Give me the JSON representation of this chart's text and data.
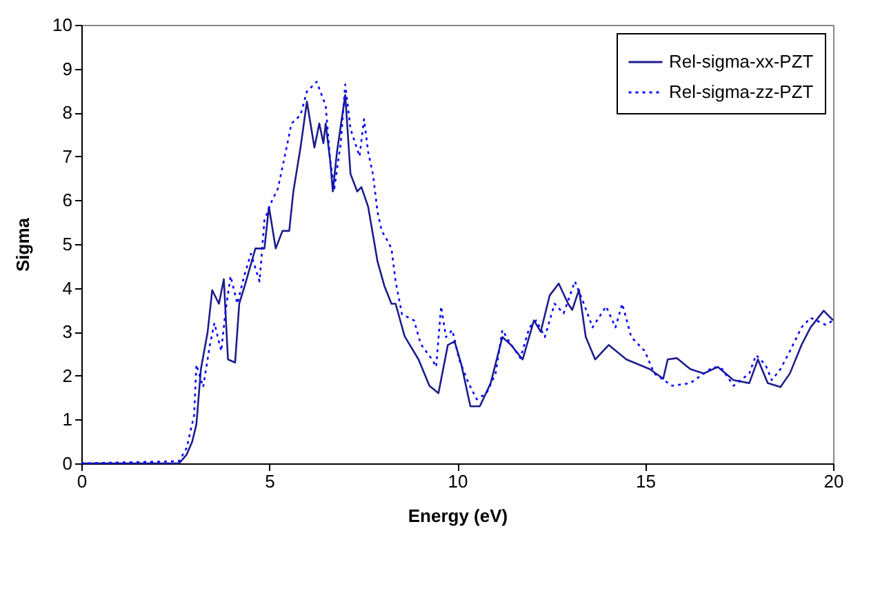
{
  "chart_data": {
    "type": "line",
    "xlabel": "Energy (eV)",
    "ylabel": "Sigma",
    "xlim": [
      0,
      20
    ],
    "ylim": [
      0,
      10
    ],
    "xticks": [
      0,
      5,
      10,
      15,
      20
    ],
    "yticks": [
      0,
      1,
      2,
      3,
      4,
      5,
      6,
      7,
      8,
      9,
      10
    ],
    "grid": false,
    "legend": "top right",
    "marker": "none",
    "series": [
      {
        "name": "Rel-sigma-xx-PZT",
        "color": "#1c1c8c",
        "line_style": "solid",
        "x": [
          0,
          2.6,
          2.8,
          2.95,
          3.06,
          3.18,
          3.36,
          3.48,
          3.66,
          3.79,
          3.9,
          4.09,
          4.2,
          4.38,
          4.63,
          4.87,
          4.99,
          5.17,
          5.35,
          5.53,
          5.64,
          5.83,
          6.0,
          6.2,
          6.33,
          6.44,
          6.5,
          6.62,
          6.69,
          6.8,
          7.02,
          7.16,
          7.34,
          7.45,
          7.63,
          7.76,
          7.88,
          8.06,
          8.25,
          8.36,
          8.6,
          8.97,
          9.26,
          9.5,
          9.75,
          9.93,
          10.11,
          10.35,
          10.6,
          10.89,
          11.2,
          11.43,
          11.74,
          12.04,
          12.22,
          12.46,
          12.7,
          12.95,
          13.06,
          13.24,
          13.42,
          13.67,
          14.03,
          14.5,
          15.12,
          15.48,
          15.6,
          15.84,
          16.2,
          16.56,
          16.93,
          17.35,
          17.77,
          18.0,
          18.26,
          18.6,
          18.85,
          19.16,
          19.4,
          19.75,
          20
        ],
        "values": [
          0,
          0,
          0.2,
          0.5,
          0.89,
          2.15,
          3.0,
          3.95,
          3.64,
          4.2,
          2.37,
          2.3,
          3.64,
          4.15,
          4.9,
          4.9,
          5.85,
          4.9,
          5.3,
          5.3,
          6.2,
          7.2,
          8.25,
          7.2,
          7.75,
          7.3,
          7.75,
          6.9,
          6.2,
          7.1,
          8.4,
          6.6,
          6.2,
          6.3,
          5.85,
          5.2,
          4.6,
          4.05,
          3.64,
          3.64,
          2.9,
          2.37,
          1.77,
          1.6,
          2.7,
          2.78,
          2.25,
          1.3,
          1.3,
          1.83,
          2.88,
          2.7,
          2.37,
          3.26,
          3.0,
          3.83,
          4.1,
          3.64,
          3.5,
          3.96,
          2.88,
          2.37,
          2.7,
          2.37,
          2.15,
          1.93,
          2.37,
          2.4,
          2.15,
          2.05,
          2.2,
          1.9,
          1.83,
          2.37,
          1.83,
          1.74,
          2.05,
          2.7,
          3.1,
          3.48,
          3.26
        ]
      },
      {
        "name": "Rel-sigma-zz-PZT",
        "color": "#0000ff",
        "line_style": "dotted",
        "x": [
          0,
          2.6,
          2.8,
          3.0,
          3.06,
          3.24,
          3.42,
          3.54,
          3.72,
          3.84,
          3.97,
          4.15,
          4.33,
          4.51,
          4.74,
          4.87,
          5.05,
          5.23,
          5.41,
          5.59,
          5.83,
          6.0,
          6.26,
          6.5,
          6.62,
          6.73,
          6.9,
          7.02,
          7.16,
          7.4,
          7.52,
          7.63,
          7.76,
          7.88,
          7.99,
          8.13,
          8.25,
          8.36,
          8.53,
          8.85,
          9.03,
          9.33,
          9.44,
          9.57,
          9.7,
          9.87,
          10.05,
          10.3,
          10.52,
          10.78,
          11.02,
          11.2,
          11.38,
          11.68,
          11.92,
          12.1,
          12.33,
          12.59,
          12.83,
          13.13,
          13.37,
          13.6,
          13.96,
          14.21,
          14.39,
          14.63,
          14.99,
          15.24,
          15.72,
          16.2,
          16.81,
          17.05,
          17.35,
          17.77,
          17.95,
          18.2,
          18.37,
          18.6,
          18.85,
          19.16,
          19.4,
          19.8,
          20
        ],
        "values": [
          0,
          0.05,
          0.35,
          1.1,
          2.25,
          1.74,
          2.7,
          3.2,
          2.56,
          3.5,
          4.27,
          3.64,
          4.27,
          4.78,
          4.15,
          5.54,
          5.95,
          6.27,
          7.0,
          7.75,
          7.94,
          8.48,
          8.7,
          8.16,
          6.9,
          6.27,
          7.3,
          8.64,
          7.63,
          7.0,
          7.85,
          7.1,
          6.58,
          5.73,
          5.3,
          5.1,
          4.9,
          4.15,
          3.4,
          3.26,
          2.72,
          2.37,
          2.2,
          3.58,
          2.88,
          3.04,
          2.37,
          1.83,
          1.46,
          1.6,
          2.05,
          3.04,
          2.78,
          2.4,
          3.1,
          3.26,
          2.88,
          3.64,
          3.42,
          4.15,
          3.64,
          3.1,
          3.58,
          3.1,
          3.64,
          2.88,
          2.56,
          2.05,
          1.77,
          1.83,
          2.2,
          2.15,
          1.77,
          2.05,
          2.47,
          2.25,
          1.9,
          2.15,
          2.56,
          3.1,
          3.32,
          3.16,
          3.26
        ]
      }
    ]
  }
}
